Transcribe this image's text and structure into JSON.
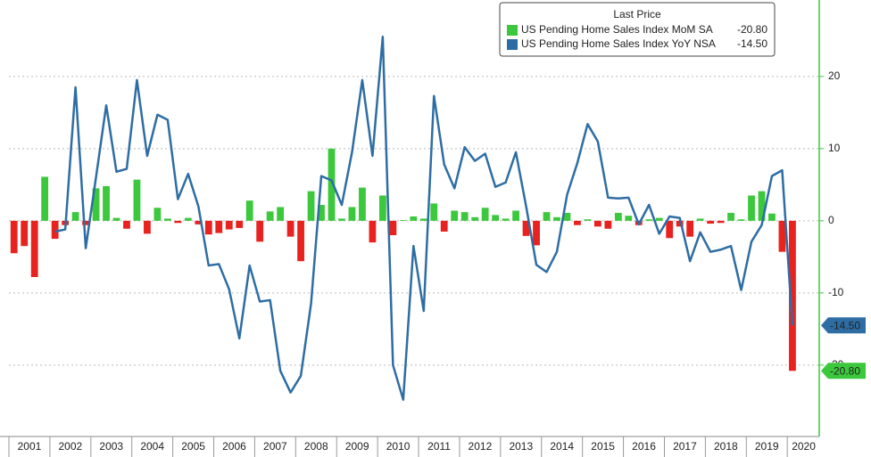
{
  "chart_data": {
    "type": "bar_line",
    "legend_title": "Last Price",
    "x": [
      2001.125,
      2001.375,
      2001.625,
      2001.875,
      2002.125,
      2002.375,
      2002.625,
      2002.875,
      2003.125,
      2003.375,
      2003.625,
      2003.875,
      2004.125,
      2004.375,
      2004.625,
      2004.875,
      2005.125,
      2005.375,
      2005.625,
      2005.875,
      2006.125,
      2006.375,
      2006.625,
      2006.875,
      2007.125,
      2007.375,
      2007.625,
      2007.875,
      2008.125,
      2008.375,
      2008.625,
      2008.875,
      2009.125,
      2009.375,
      2009.625,
      2009.875,
      2010.125,
      2010.375,
      2010.625,
      2010.875,
      2011.125,
      2011.375,
      2011.625,
      2011.875,
      2012.125,
      2012.375,
      2012.625,
      2012.875,
      2013.125,
      2013.375,
      2013.625,
      2013.875,
      2014.125,
      2014.375,
      2014.625,
      2014.875,
      2015.125,
      2015.375,
      2015.625,
      2015.875,
      2016.125,
      2016.375,
      2016.625,
      2016.875,
      2017.125,
      2017.375,
      2017.625,
      2017.875,
      2018.125,
      2018.375,
      2018.625,
      2018.875,
      2019.125,
      2019.375,
      2019.625,
      2019.875,
      2020.125
    ],
    "series": [
      {
        "name": "US Pending Home Sales Index MoM SA",
        "color": "#3cc83c",
        "negative_color": "#e8231f",
        "kind": "bar",
        "values": [
          -4.5,
          -3.5,
          -7.8,
          6.1,
          -2.5,
          -0.6,
          1.2,
          -0.6,
          4.5,
          4.8,
          0.4,
          -1.1,
          5.7,
          -1.8,
          1.8,
          0.3,
          -0.3,
          0.4,
          -0.5,
          -1.9,
          -1.7,
          -1.2,
          -1,
          2.8,
          -2.9,
          1.3,
          1.9,
          -2.2,
          -5.6,
          4.1,
          2.2,
          10,
          0.3,
          1.9,
          4.6,
          -3,
          3.5,
          -2,
          0.1,
          0.6,
          0.3,
          2.4,
          -1.5,
          1.4,
          1.2,
          0.5,
          1.8,
          0.8,
          0.3,
          1.4,
          -2.1,
          -3.4,
          1.2,
          0.5,
          1.1,
          -0.6,
          0.2,
          -0.8,
          -1.1,
          1.1,
          0.7,
          -0.6,
          0.2,
          0.4,
          -2.4,
          -0.8,
          -2.2,
          0.3,
          -0.4,
          -0.3,
          1.1,
          0.2,
          3.5,
          4.1,
          1,
          -4.3,
          -20.8
        ],
        "value_labels": [
          null,
          null,
          null,
          null,
          null,
          null,
          null,
          null,
          null,
          null,
          null,
          null,
          null,
          null,
          null,
          null,
          null,
          null,
          null,
          null,
          null,
          null,
          null,
          null,
          null,
          null,
          null,
          null,
          null,
          null,
          null,
          null,
          null,
          null,
          null,
          null,
          null,
          null,
          null,
          null,
          null,
          null,
          null,
          null,
          null,
          null,
          null,
          null,
          null,
          null,
          null,
          null,
          null,
          null,
          null,
          null,
          null,
          null,
          null,
          null,
          null,
          null,
          null,
          null,
          null,
          null,
          null,
          null,
          null,
          null,
          null,
          null,
          null,
          null,
          null,
          null,
          "-20.80"
        ]
      },
      {
        "name": "US Pending Home Sales Index YoY NSA",
        "color": "#2e6da4",
        "kind": "line",
        "values": [
          null,
          null,
          null,
          null,
          -1.5,
          -1.2,
          18.5,
          -3.8,
          6,
          16,
          6.8,
          7.2,
          19.5,
          9,
          14.7,
          14,
          3,
          6.5,
          2,
          -6.2,
          -6,
          -9.5,
          -16.3,
          -6.2,
          -11.2,
          -11,
          -20.8,
          -23.8,
          -21.5,
          -11.5,
          6.2,
          5.6,
          2.2,
          9.5,
          19.5,
          9,
          25.5,
          -20,
          -24.8,
          -3.5,
          -12.5,
          17.3,
          7.8,
          4.5,
          10.2,
          8.3,
          9.3,
          4.7,
          5.3,
          9.5,
          2,
          -6.1,
          -7.1,
          -4.3,
          3.6,
          8,
          13.4,
          11,
          3.2,
          3.1,
          3.2,
          -0.5,
          2.2,
          -1.8,
          0.6,
          0.4,
          -5.6,
          -1.6,
          -4.3,
          -4,
          -3.5,
          -9.6,
          -2.9,
          -0.6,
          6.2,
          7,
          -14.5
        ],
        "value_labels": [
          null,
          null,
          null,
          null,
          null,
          null,
          null,
          null,
          null,
          null,
          null,
          null,
          null,
          null,
          null,
          null,
          null,
          null,
          null,
          null,
          null,
          null,
          null,
          null,
          null,
          null,
          null,
          null,
          null,
          null,
          null,
          null,
          null,
          null,
          null,
          null,
          null,
          null,
          null,
          null,
          null,
          null,
          null,
          null,
          null,
          null,
          null,
          null,
          null,
          null,
          null,
          null,
          null,
          null,
          null,
          null,
          null,
          null,
          null,
          null,
          null,
          null,
          null,
          null,
          null,
          null,
          null,
          null,
          null,
          null,
          null,
          null,
          null,
          null,
          null,
          null,
          "-14.50"
        ]
      }
    ],
    "xlim": [
      2001,
      2020.78
    ],
    "xticks": [
      {
        "value": 2001.5,
        "label": "2001"
      },
      {
        "value": 2002.5,
        "label": "2002"
      },
      {
        "value": 2003.5,
        "label": "2003"
      },
      {
        "value": 2004.5,
        "label": "2004"
      },
      {
        "value": 2005.5,
        "label": "2005"
      },
      {
        "value": 2006.5,
        "label": "2006"
      },
      {
        "value": 2007.5,
        "label": "2007"
      },
      {
        "value": 2008.5,
        "label": "2008"
      },
      {
        "value": 2009.5,
        "label": "2009"
      },
      {
        "value": 2010.5,
        "label": "2010"
      },
      {
        "value": 2011.5,
        "label": "2011"
      },
      {
        "value": 2012.5,
        "label": "2012"
      },
      {
        "value": 2013.5,
        "label": "2013"
      },
      {
        "value": 2014.5,
        "label": "2014"
      },
      {
        "value": 2015.5,
        "label": "2015"
      },
      {
        "value": 2016.5,
        "label": "2016"
      },
      {
        "value": 2017.5,
        "label": "2017"
      },
      {
        "value": 2018.5,
        "label": "2018"
      },
      {
        "value": 2019.5,
        "label": "2019"
      },
      {
        "value": 2020.4,
        "label": "2020"
      }
    ],
    "ylim": [
      -29.9,
      30.6
    ],
    "yticks": [
      20,
      10,
      0,
      -10,
      -20
    ],
    "grid": true,
    "legend": "top-right"
  }
}
